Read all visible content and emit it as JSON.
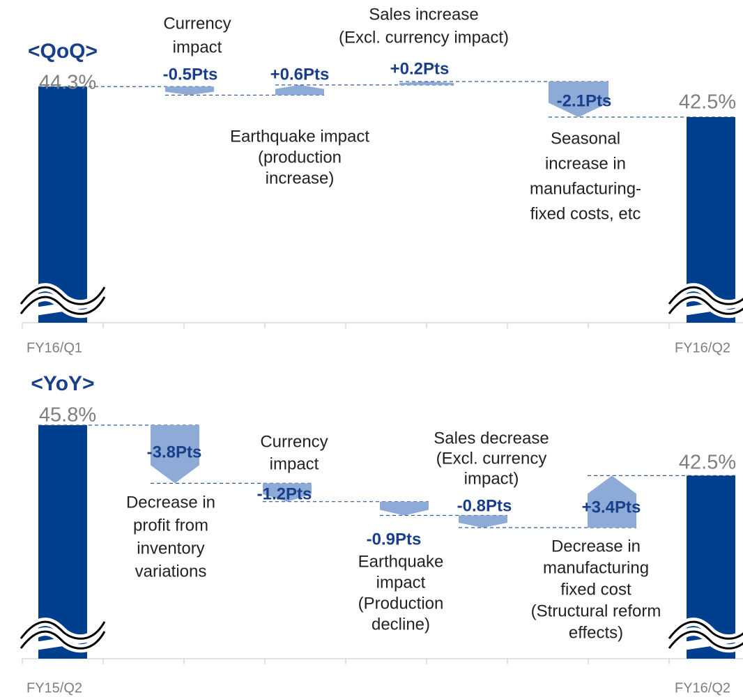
{
  "chart_data": [
    {
      "type": "waterfall",
      "title": "<QoQ>",
      "categories": [
        "FY16/Q1",
        null,
        null,
        null,
        null,
        "FY16/Q2"
      ],
      "values": [
        44.3,
        -0.5,
        0.6,
        0.2,
        -2.1,
        42.5
      ],
      "value_labels": [
        "44.3%",
        "-0.5Pts",
        "+0.6Pts",
        "+0.2Pts",
        "-2.1Pts",
        "42.5%"
      ],
      "descriptions": [
        null,
        [
          "Currency",
          "impact"
        ],
        [
          "Earthquake impact",
          "(production",
          "increase)"
        ],
        [
          "Sales increase",
          "(Excl. currency impact)"
        ],
        [
          "Seasonal",
          "increase in",
          "manufacturing-",
          "fixed costs, etc"
        ],
        null
      ],
      "bar_color": "#003e8e",
      "step_color": "#8eaad6"
    },
    {
      "type": "waterfall",
      "title": "<YoY>",
      "categories": [
        "FY15/Q2",
        null,
        null,
        null,
        null,
        null,
        "FY16/Q2"
      ],
      "values": [
        45.8,
        -3.8,
        -1.2,
        -0.9,
        -0.8,
        3.4,
        42.5
      ],
      "value_labels": [
        "45.8%",
        "-3.8Pts",
        "-1.2Pts",
        "-0.9Pts",
        "-0.8Pts",
        "+3.4Pts",
        "42.5%"
      ],
      "descriptions": [
        null,
        [
          "Decrease in",
          "profit from",
          "inventory",
          "variations"
        ],
        [
          "Currency",
          "impact"
        ],
        [
          "Earthquake",
          "impact",
          "(Production",
          "decline)"
        ],
        [
          "Sales decrease",
          "(Excl. currency",
          "impact)"
        ],
        [
          "Decrease in",
          "manufacturing",
          "fixed cost",
          "(Structural reform",
          "effects)"
        ],
        null
      ],
      "bar_color": "#003e8e",
      "step_color": "#8eaad6"
    }
  ]
}
